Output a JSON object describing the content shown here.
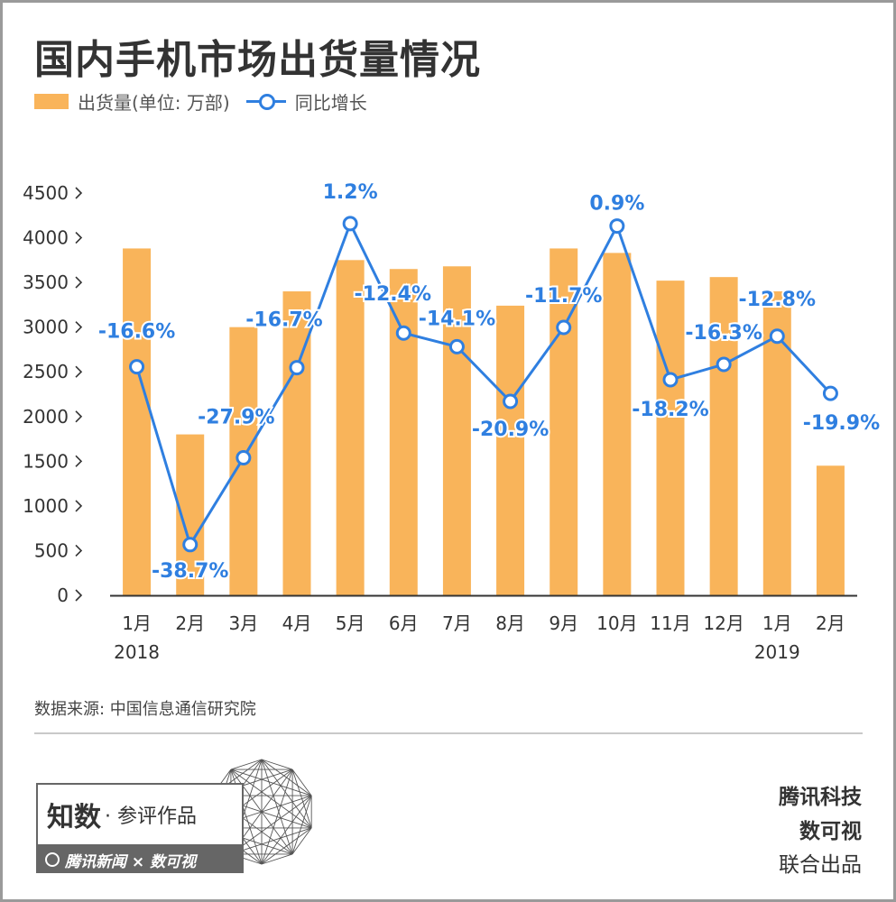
{
  "title": "国内手机市场出货量情况",
  "legend": {
    "bar_label": "出货量(单位: 万部)",
    "line_label": "同比增长"
  },
  "chart_data": {
    "type": "bar",
    "categories": [
      "1月",
      "2月",
      "3月",
      "4月",
      "5月",
      "6月",
      "7月",
      "8月",
      "9月",
      "10月",
      "11月",
      "12月",
      "1月",
      "2月"
    ],
    "year_labels": [
      {
        "index": 0,
        "label": "2018"
      },
      {
        "index": 12,
        "label": "2019"
      }
    ],
    "series": [
      {
        "name": "出货量(单位: 万部)",
        "type": "bar",
        "values": [
          3880,
          1800,
          3000,
          3400,
          3750,
          3650,
          3680,
          3240,
          3880,
          3830,
          3520,
          3560,
          3400,
          1450
        ]
      },
      {
        "name": "同比增长",
        "type": "line",
        "values": [
          -16.6,
          -38.7,
          -27.9,
          -16.7,
          1.2,
          -12.4,
          -14.1,
          -20.9,
          -11.7,
          0.9,
          -18.2,
          -16.3,
          -12.8,
          -19.9
        ],
        "labels": [
          "-16.6%",
          "-38.7%",
          "-27.9%",
          "-16.7%",
          "1.2%",
          "-12.4%",
          "-14.1%",
          "-20.9%",
          "-11.7%",
          "0.9%",
          "-18.2%",
          "-16.3%",
          "-12.8%",
          "-19.9%"
        ]
      }
    ],
    "y_ticks": [
      "4500",
      "4000",
      "3500",
      "3000",
      "2500",
      "2000",
      "1500",
      "1000",
      "500",
      "0"
    ],
    "ylim": [
      0,
      4500
    ],
    "line_ylim": [
      -45,
      5
    ],
    "grid": false,
    "colors": {
      "bar": "#f9b45a",
      "line": "#2f7fe0",
      "label": "#2f7fe0",
      "axis": "#333333"
    }
  },
  "source": "数据来源: 中国信息通信研究院",
  "badge": {
    "main": "知数",
    "sub": "· 参评作品",
    "bar_text": "腾讯新闻 × 数可视"
  },
  "credits": [
    "腾讯科技",
    "数可视",
    "联合出品"
  ]
}
